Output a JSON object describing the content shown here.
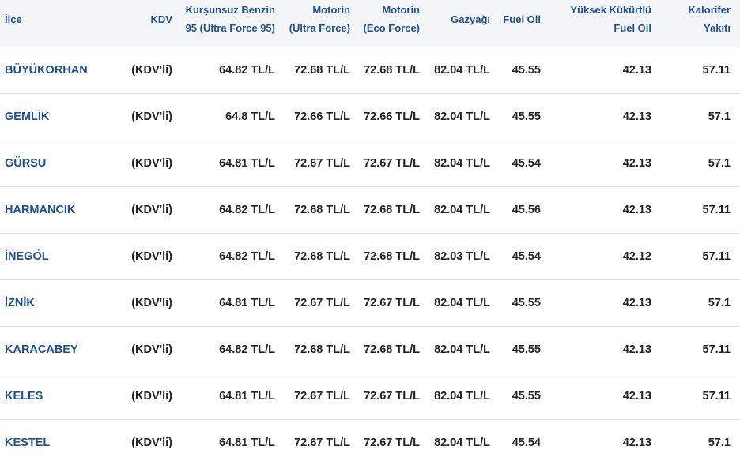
{
  "table": {
    "columns": [
      "İlçe",
      "KDV",
      "Kurşunsuz Benzin 95 (Ultra Force 95)",
      "Motorin (Ultra Force)",
      "Motorin (Eco Force)",
      "Gazyağı",
      "Fuel Oil",
      "Yüksek Kükürtlü Fuel Oil",
      "Kalorifer Yakıtı"
    ],
    "rows": [
      [
        "BÜYÜKORHAN",
        "(KDV'li)",
        "64.82 TL/L",
        "72.68 TL/L",
        "72.68 TL/L",
        "82.04 TL/L",
        "45.55",
        "42.13",
        "57.11"
      ],
      [
        "GEMLİK",
        "(KDV'li)",
        "64.8 TL/L",
        "72.66 TL/L",
        "72.66 TL/L",
        "82.04 TL/L",
        "45.55",
        "42.13",
        "57.1"
      ],
      [
        "GÜRSU",
        "(KDV'li)",
        "64.81 TL/L",
        "72.67 TL/L",
        "72.67 TL/L",
        "82.04 TL/L",
        "45.54",
        "42.13",
        "57.1"
      ],
      [
        "HARMANCIK",
        "(KDV'li)",
        "64.82 TL/L",
        "72.68 TL/L",
        "72.68 TL/L",
        "82.04 TL/L",
        "45.56",
        "42.13",
        "57.11"
      ],
      [
        "İNEGÖL",
        "(KDV'li)",
        "64.82 TL/L",
        "72.68 TL/L",
        "72.68 TL/L",
        "82.03 TL/L",
        "45.54",
        "42.12",
        "57.11"
      ],
      [
        "İZNİK",
        "(KDV'li)",
        "64.81 TL/L",
        "72.67 TL/L",
        "72.67 TL/L",
        "82.04 TL/L",
        "45.55",
        "42.13",
        "57.1"
      ],
      [
        "KARACABEY",
        "(KDV'li)",
        "64.82 TL/L",
        "72.68 TL/L",
        "72.68 TL/L",
        "82.04 TL/L",
        "45.55",
        "42.13",
        "57.11"
      ],
      [
        "KELES",
        "(KDV'li)",
        "64.81 TL/L",
        "72.67 TL/L",
        "72.67 TL/L",
        "82.04 TL/L",
        "45.55",
        "42.13",
        "57.11"
      ],
      [
        "KESTEL",
        "(KDV'li)",
        "64.81 TL/L",
        "72.67 TL/L",
        "72.67 TL/L",
        "82.04 TL/L",
        "45.54",
        "42.13",
        "57.1"
      ]
    ]
  }
}
